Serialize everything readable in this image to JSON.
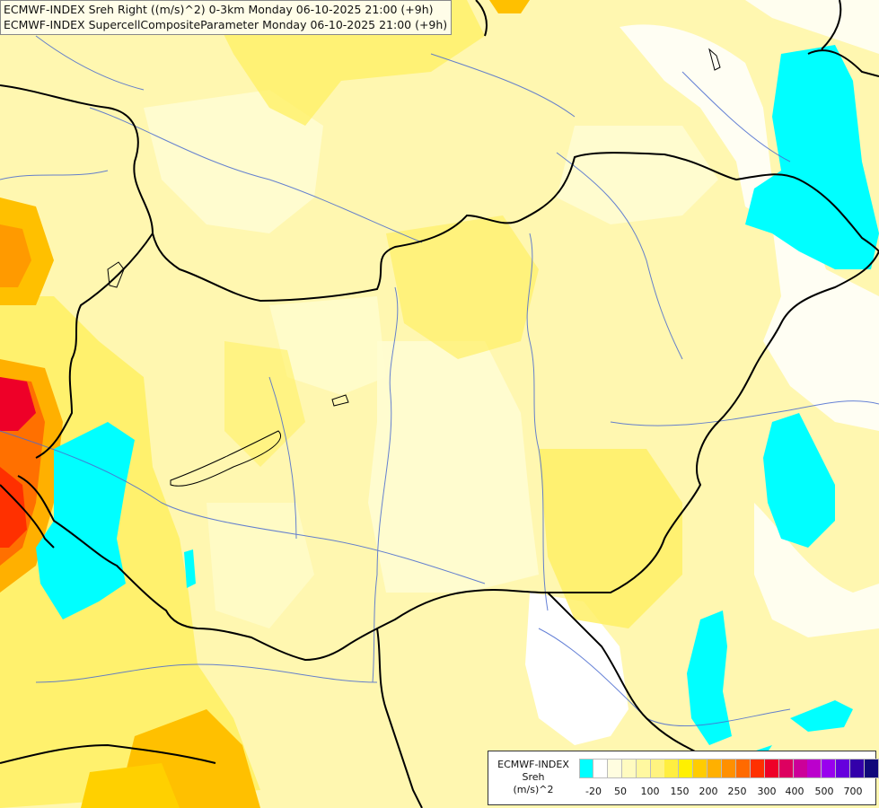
{
  "header": {
    "line1": "ECMWF-INDEX Sreh Right ((m/s)^2) 0-3km Monday 06-10-2025 21:00 (+9h)",
    "line2": "ECMWF-INDEX SupercellCompositeParameter Monday 06-10-2025 21:00 (+9h)"
  },
  "legend": {
    "title": "ECMWF-INDEX",
    "variable": "Sreh",
    "unit": "(m/s)^2",
    "colors": [
      "#00ffff",
      "#ffffff",
      "#fffde0",
      "#fffbc0",
      "#fff8a0",
      "#fff380",
      "#ffee40",
      "#fff000",
      "#ffcc00",
      "#ffb000",
      "#ff9000",
      "#ff6a00",
      "#ff3000",
      "#ee0028",
      "#dd0060",
      "#cc0099",
      "#bb00cc",
      "#9900ee",
      "#6600dd",
      "#3300aa",
      "#10087a"
    ],
    "ticks": [
      "-20",
      "50",
      "100",
      "150",
      "200",
      "250",
      "300",
      "400",
      "500",
      "700"
    ]
  },
  "map_colors": {
    "cyan": "#00ffff",
    "pale_yellow": "#fffbc0",
    "yellow": "#fff380",
    "bright_yellow": "#ffee40",
    "orange": "#ffb000",
    "red": "#ee0028",
    "country_border": "#000000",
    "river": "#4a6bcf"
  }
}
